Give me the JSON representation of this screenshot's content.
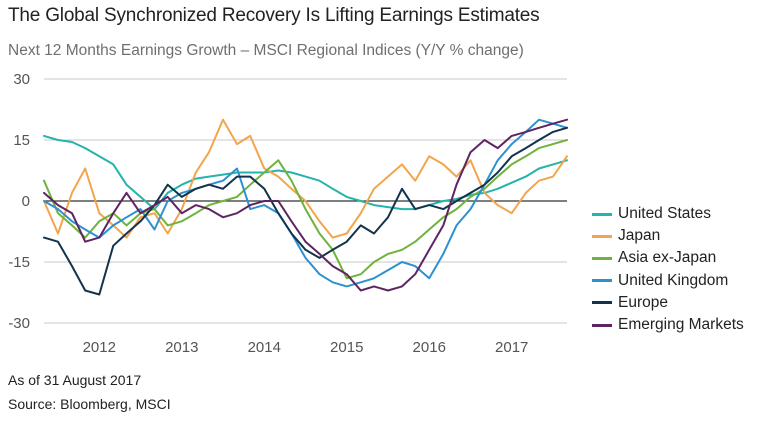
{
  "title": "The Global Synchronized Recovery Is Lifting Earnings Estimates",
  "subtitle": "Next 12 Months Earnings Growth – MSCI Regional Indices (Y/Y % change)",
  "footnote": "As of 31 August 2017",
  "source": "Source: Bloomberg, MSCI",
  "chart_data": {
    "type": "line",
    "ylim": [
      -30,
      30
    ],
    "yticks": [
      30,
      15,
      0,
      -15,
      -30
    ],
    "xlim": [
      2011.33,
      2017.67
    ],
    "xtick_labels": [
      "2012",
      "2013",
      "2014",
      "2015",
      "2016",
      "2017"
    ],
    "xtick_positions": [
      2012,
      2013,
      2014,
      2015,
      2016,
      2017
    ],
    "grid": "horizontal",
    "legend_position": "right",
    "series": [
      {
        "name": "United States",
        "color": "#24b3ad",
        "x": [
          2011.33,
          2011.5,
          2011.67,
          2011.83,
          2012,
          2012.17,
          2012.33,
          2012.5,
          2012.67,
          2012.83,
          2013,
          2013.17,
          2013.33,
          2013.5,
          2013.67,
          2013.83,
          2014,
          2014.17,
          2014.33,
          2014.5,
          2014.67,
          2014.83,
          2015,
          2015.17,
          2015.33,
          2015.5,
          2015.67,
          2015.83,
          2016,
          2016.17,
          2016.33,
          2016.5,
          2016.67,
          2016.83,
          2017,
          2017.17,
          2017.33,
          2017.5,
          2017.67
        ],
        "y": [
          16,
          15,
          14.5,
          13,
          11,
          9,
          4,
          1,
          -2,
          2,
          4,
          5.5,
          6,
          6.5,
          7,
          7,
          7,
          7.5,
          7,
          6,
          5,
          3,
          1,
          0,
          -1,
          -1.5,
          -2,
          -2,
          -1,
          0,
          0.5,
          1.5,
          2,
          3,
          4.5,
          6,
          8,
          9,
          10
        ]
      },
      {
        "name": "Japan",
        "color": "#f2a54c",
        "x": [
          2011.33,
          2011.5,
          2011.67,
          2011.83,
          2012,
          2012.17,
          2012.33,
          2012.5,
          2012.67,
          2012.83,
          2013,
          2013.17,
          2013.33,
          2013.5,
          2013.67,
          2013.83,
          2014,
          2014.17,
          2014.33,
          2014.5,
          2014.67,
          2014.83,
          2015,
          2015.17,
          2015.33,
          2015.5,
          2015.67,
          2015.83,
          2016,
          2016.17,
          2016.33,
          2016.5,
          2016.67,
          2016.83,
          2017,
          2017.17,
          2017.33,
          2017.5,
          2017.67
        ],
        "y": [
          0,
          -8,
          2,
          8,
          -3,
          -6,
          -9,
          -4,
          -3,
          -8,
          -2,
          7,
          12,
          20,
          14,
          16,
          8,
          6,
          3,
          0,
          -5,
          -9,
          -8,
          -3,
          3,
          6,
          9,
          5,
          11,
          9,
          6,
          10,
          2,
          -1,
          -3,
          2,
          5,
          6,
          11
        ]
      },
      {
        "name": "Asia ex-Japan",
        "color": "#6fb23c",
        "x": [
          2011.33,
          2011.5,
          2011.67,
          2011.83,
          2012,
          2012.17,
          2012.33,
          2012.5,
          2012.67,
          2012.83,
          2013,
          2013.17,
          2013.33,
          2013.5,
          2013.67,
          2013.83,
          2014,
          2014.17,
          2014.33,
          2014.5,
          2014.67,
          2014.83,
          2015,
          2015.17,
          2015.33,
          2015.5,
          2015.67,
          2015.83,
          2016,
          2016.17,
          2016.33,
          2016.5,
          2016.67,
          2016.83,
          2017,
          2017.17,
          2017.33,
          2017.5,
          2017.67
        ],
        "y": [
          5,
          -3,
          -6,
          -9,
          -5,
          -3,
          -6,
          -3,
          -2,
          -6,
          -5,
          -3,
          -1,
          0,
          1,
          4,
          7,
          10,
          5,
          -2,
          -8,
          -12,
          -19,
          -18,
          -15,
          -13,
          -12,
          -10,
          -7,
          -4,
          -2,
          1,
          3,
          6,
          9,
          11,
          13,
          14,
          15
        ]
      },
      {
        "name": "United Kingdom",
        "color": "#2d91d0",
        "x": [
          2011.33,
          2011.5,
          2011.67,
          2011.83,
          2012,
          2012.17,
          2012.33,
          2012.5,
          2012.67,
          2012.83,
          2013,
          2013.17,
          2013.33,
          2013.5,
          2013.67,
          2013.83,
          2014,
          2014.17,
          2014.33,
          2014.5,
          2014.67,
          2014.83,
          2015,
          2015.17,
          2015.33,
          2015.5,
          2015.67,
          2015.83,
          2016,
          2016.17,
          2016.33,
          2016.5,
          2016.67,
          2016.83,
          2017,
          2017.17,
          2017.33,
          2017.5,
          2017.67
        ],
        "y": [
          0,
          -2,
          -5,
          -7,
          -9,
          -6,
          -4,
          -2,
          -7,
          0,
          2,
          3,
          4,
          5,
          8,
          -2,
          -1,
          -3,
          -8,
          -14,
          -18,
          -20,
          -21,
          -20,
          -19,
          -17,
          -15,
          -16,
          -19,
          -13,
          -6,
          -2,
          4,
          10,
          14,
          17,
          20,
          19,
          18
        ]
      },
      {
        "name": "Europe",
        "color": "#13334c",
        "x": [
          2011.33,
          2011.5,
          2011.67,
          2011.83,
          2012,
          2012.17,
          2012.33,
          2012.5,
          2012.67,
          2012.83,
          2013,
          2013.17,
          2013.33,
          2013.5,
          2013.67,
          2013.83,
          2014,
          2014.17,
          2014.33,
          2014.5,
          2014.67,
          2014.83,
          2015,
          2015.17,
          2015.33,
          2015.5,
          2015.67,
          2015.83,
          2016,
          2016.17,
          2016.33,
          2016.5,
          2016.67,
          2016.83,
          2017,
          2017.17,
          2017.33,
          2017.5,
          2017.67
        ],
        "y": [
          -9,
          -10,
          -16,
          -22,
          -23,
          -11,
          -8,
          -5,
          -1,
          4,
          1,
          3,
          4,
          3,
          6,
          6,
          3,
          -3,
          -8,
          -12,
          -14,
          -12,
          -10,
          -6,
          -8,
          -4,
          3,
          -2,
          -1,
          -2,
          0,
          2,
          4,
          7,
          11,
          13,
          15,
          17,
          18
        ]
      },
      {
        "name": "Emerging Markets",
        "color": "#5f2462",
        "x": [
          2011.33,
          2011.5,
          2011.67,
          2011.83,
          2012,
          2012.17,
          2012.33,
          2012.5,
          2012.67,
          2012.83,
          2013,
          2013.17,
          2013.33,
          2013.5,
          2013.67,
          2013.83,
          2014,
          2014.17,
          2014.33,
          2014.5,
          2014.67,
          2014.83,
          2015,
          2015.17,
          2015.33,
          2015.5,
          2015.67,
          2015.83,
          2016,
          2016.17,
          2016.33,
          2016.5,
          2016.67,
          2016.83,
          2017,
          2017.17,
          2017.33,
          2017.5,
          2017.67
        ],
        "y": [
          2,
          -1,
          -3,
          -10,
          -9,
          -3,
          2,
          -3,
          -1,
          1,
          -3,
          -1,
          -2,
          -4,
          -3,
          -1,
          0,
          0,
          -5,
          -10,
          -13,
          -16,
          -18,
          -22,
          -21,
          -22,
          -21,
          -18,
          -12,
          -6,
          4,
          12,
          15,
          13,
          16,
          17,
          18,
          19,
          20
        ]
      }
    ]
  }
}
